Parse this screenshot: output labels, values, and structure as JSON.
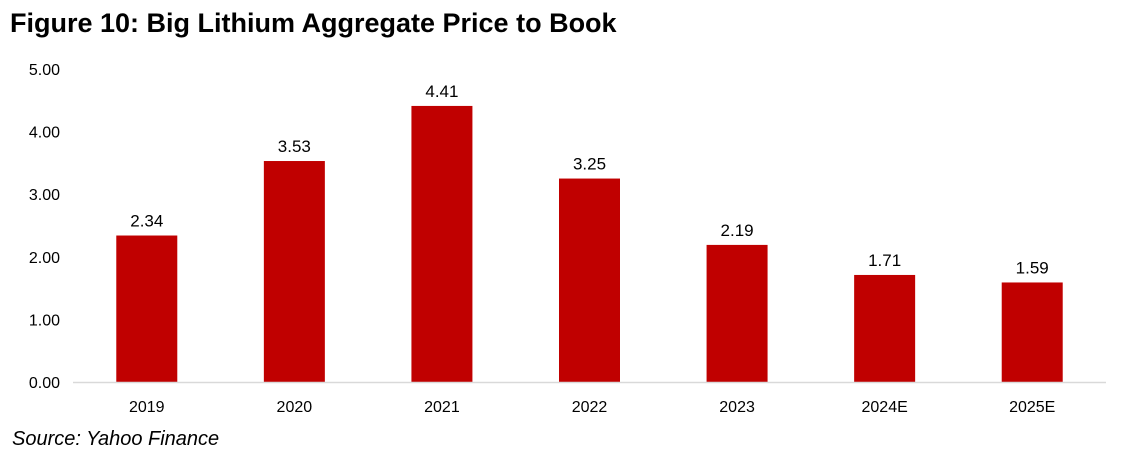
{
  "figure": {
    "title": "Figure 10: Big Lithium Aggregate Price to Book",
    "source": "Source: Yahoo Finance"
  },
  "chart_data": {
    "type": "bar",
    "title": "Figure 10: Big Lithium Aggregate Price to Book",
    "xlabel": "",
    "ylabel": "",
    "categories": [
      "2019",
      "2020",
      "2021",
      "2022",
      "2023",
      "2024E",
      "2025E"
    ],
    "series": [
      {
        "name": "Aggregate Price to Book",
        "values": [
          2.34,
          3.53,
          4.41,
          3.25,
          2.19,
          1.71,
          1.59
        ],
        "labels": [
          "2.34",
          "3.53",
          "4.41",
          "3.25",
          "2.19",
          "1.71",
          "1.59"
        ]
      }
    ],
    "ylim": [
      0,
      5
    ],
    "yticks": [
      0,
      1,
      2,
      3,
      4,
      5
    ],
    "ytick_labels": [
      "0.00",
      "1.00",
      "2.00",
      "3.00",
      "4.00",
      "5.00"
    ],
    "grid": false,
    "legend": "none",
    "bar_color": "#c00000",
    "axis_color": "#d9d9d9"
  }
}
